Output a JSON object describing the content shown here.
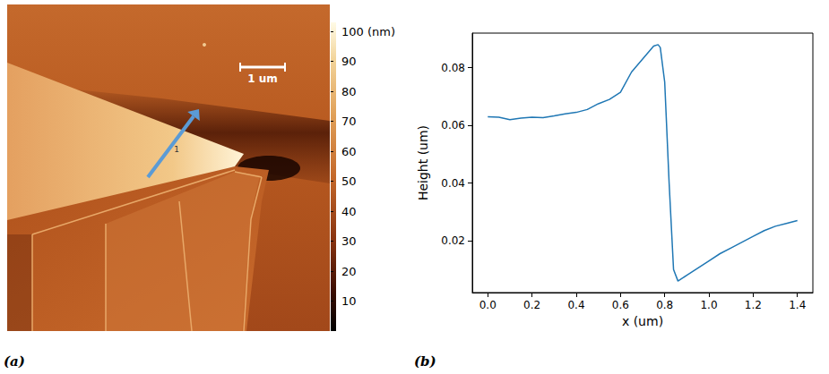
{
  "chart_data": [
    {
      "type": "image",
      "panel": "(a)",
      "colorbar": {
        "range": [
          0,
          103
        ],
        "ticks": [
          10,
          20,
          30,
          40,
          50,
          60,
          70,
          80,
          90,
          {
            "value": 100,
            "label": "100 (nm)"
          }
        ]
      },
      "scale_bar": "1 um",
      "annotations": [
        "1"
      ]
    },
    {
      "type": "line",
      "panel": "(b)",
      "x_label": "x (um)",
      "y_label": "Height (um)",
      "color": "#1f77b4",
      "grid": false,
      "x": [
        0.0,
        0.05,
        0.1,
        0.15,
        0.2,
        0.25,
        0.3,
        0.35,
        0.4,
        0.45,
        0.5,
        0.55,
        0.6,
        0.65,
        0.7,
        0.75,
        0.77,
        0.78,
        0.8,
        0.82,
        0.84,
        0.86,
        0.9,
        0.95,
        1.0,
        1.05,
        1.1,
        1.15,
        1.2,
        1.25,
        1.3,
        1.35,
        1.4
      ],
      "values": [
        0.063,
        0.0628,
        0.062,
        0.0625,
        0.0628,
        0.0627,
        0.0633,
        0.064,
        0.0645,
        0.0655,
        0.0675,
        0.069,
        0.0715,
        0.0785,
        0.083,
        0.0875,
        0.088,
        0.087,
        0.075,
        0.04,
        0.01,
        0.006,
        0.008,
        0.0105,
        0.013,
        0.0155,
        0.0175,
        0.0195,
        0.0215,
        0.0235,
        0.025,
        0.026,
        0.027
      ],
      "xlim": [
        -0.07,
        1.47
      ],
      "xticks": [
        {
          "value": 0,
          "label": "0.0"
        },
        0.2,
        0.4,
        0.6,
        0.8,
        {
          "value": 1,
          "label": "1.0"
        },
        1.2,
        1.4
      ],
      "ylim": [
        0.002,
        0.092
      ],
      "yticks": [
        0.02,
        0.04,
        0.06,
        0.08
      ]
    }
  ]
}
